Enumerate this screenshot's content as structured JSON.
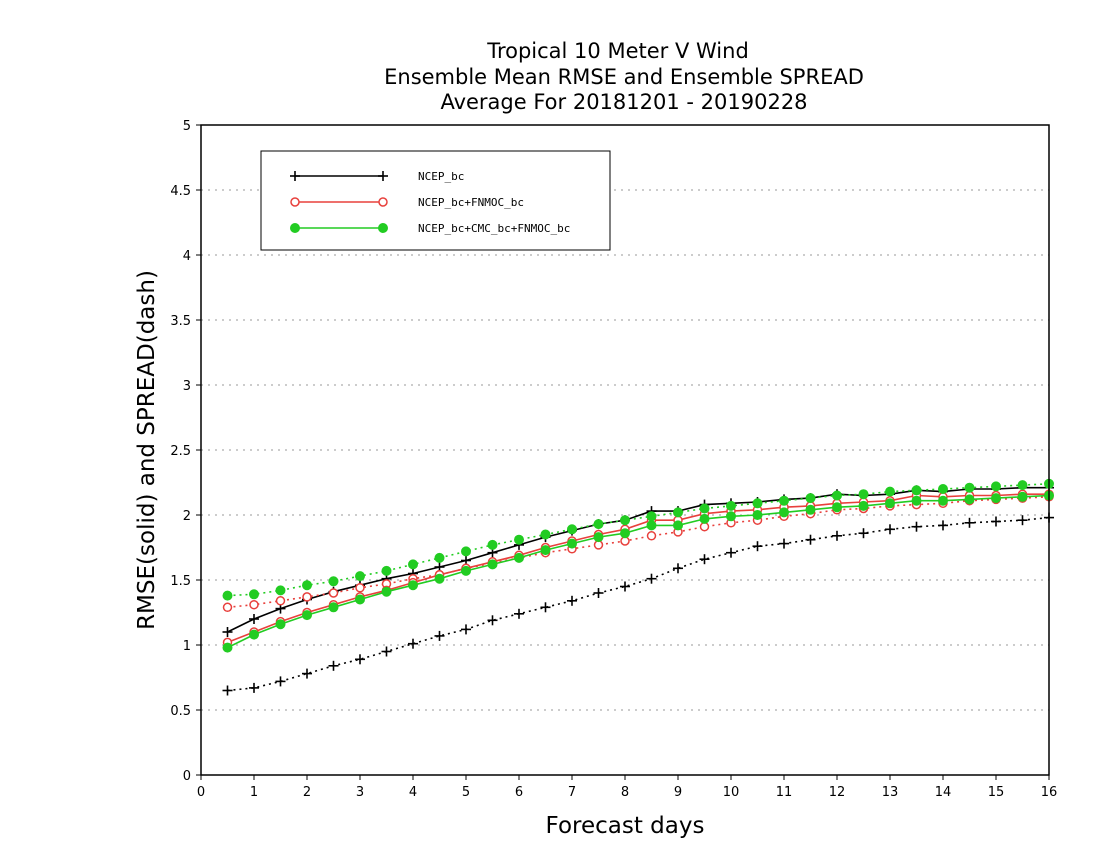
{
  "chart_data": {
    "type": "line",
    "title": [
      "Tropical 10 Meter V Wind",
      "Ensemble Mean RMSE and Ensemble SPREAD",
      "Average For 20181201 - 20190228"
    ],
    "xlabel": "Forecast days",
    "ylabel": "RMSE(solid) and SPREAD(dash)",
    "xlim": [
      0,
      16
    ],
    "ylim": [
      0,
      5
    ],
    "xticks": [
      0,
      1,
      2,
      3,
      4,
      5,
      6,
      7,
      8,
      9,
      10,
      11,
      12,
      13,
      14,
      15,
      16
    ],
    "xtick_labels": [
      "0",
      "1",
      "2",
      "3",
      "4",
      "5",
      "6",
      "7",
      "8",
      "9",
      "10",
      "11",
      "12",
      "13",
      "14",
      "15",
      "16"
    ],
    "yticks": [
      0,
      0.5,
      1,
      1.5,
      2,
      2.5,
      3,
      3.5,
      4,
      4.5,
      5
    ],
    "ytick_labels": [
      "0",
      "0.5",
      "1",
      "1.5",
      "2",
      "2.5",
      "3",
      "3.5",
      "4",
      "4.5",
      "5"
    ],
    "grid": "horizontal dotted",
    "legend_position": "top-left",
    "x": [
      0.5,
      1,
      1.5,
      2,
      2.5,
      3,
      3.5,
      4,
      4.5,
      5,
      5.5,
      6,
      6.5,
      7,
      7.5,
      8,
      8.5,
      9,
      9.5,
      10,
      10.5,
      11,
      11.5,
      12,
      12.5,
      13,
      13.5,
      14,
      14.5,
      15,
      15.5,
      16
    ],
    "series": [
      {
        "name": "NCEP_bc",
        "color": "#000000",
        "marker": "plus",
        "rmse": [
          1.1,
          1.2,
          1.28,
          1.35,
          1.41,
          1.46,
          1.51,
          1.55,
          1.6,
          1.65,
          1.71,
          1.77,
          1.83,
          1.88,
          1.93,
          1.96,
          2.03,
          2.03,
          2.08,
          2.09,
          2.1,
          2.12,
          2.13,
          2.16,
          2.15,
          2.16,
          2.19,
          2.18,
          2.2,
          2.2,
          2.21,
          2.21
        ],
        "spread": [
          0.65,
          0.67,
          0.72,
          0.78,
          0.84,
          0.89,
          0.95,
          1.01,
          1.07,
          1.12,
          1.19,
          1.24,
          1.29,
          1.34,
          1.4,
          1.45,
          1.51,
          1.59,
          1.66,
          1.71,
          1.76,
          1.78,
          1.81,
          1.84,
          1.86,
          1.89,
          1.91,
          1.92,
          1.94,
          1.95,
          1.96,
          1.98
        ]
      },
      {
        "name": "NCEP_bc+FNMOC_bc",
        "color": "#e8403c",
        "marker": "open-circle",
        "rmse": [
          1.02,
          1.1,
          1.18,
          1.25,
          1.31,
          1.37,
          1.42,
          1.48,
          1.54,
          1.59,
          1.64,
          1.69,
          1.75,
          1.8,
          1.85,
          1.89,
          1.96,
          1.96,
          2.01,
          2.03,
          2.04,
          2.06,
          2.07,
          2.09,
          2.1,
          2.11,
          2.15,
          2.14,
          2.15,
          2.15,
          2.16,
          2.16
        ],
        "spread": [
          1.29,
          1.31,
          1.34,
          1.37,
          1.4,
          1.44,
          1.47,
          1.51,
          1.54,
          1.59,
          1.63,
          1.67,
          1.71,
          1.74,
          1.77,
          1.8,
          1.84,
          1.87,
          1.91,
          1.94,
          1.96,
          1.99,
          2.01,
          2.04,
          2.05,
          2.07,
          2.08,
          2.09,
          2.11,
          2.12,
          2.13,
          2.14
        ]
      },
      {
        "name": "NCEP_bc+CMC_bc+FNMOC_bc",
        "color": "#22cc22",
        "marker": "filled-circle",
        "rmse": [
          0.98,
          1.08,
          1.16,
          1.23,
          1.29,
          1.35,
          1.41,
          1.46,
          1.51,
          1.57,
          1.62,
          1.67,
          1.73,
          1.78,
          1.83,
          1.86,
          1.92,
          1.92,
          1.97,
          1.99,
          2.0,
          2.02,
          2.04,
          2.06,
          2.07,
          2.09,
          2.11,
          2.11,
          2.12,
          2.13,
          2.14,
          2.15
        ],
        "spread": [
          1.38,
          1.39,
          1.42,
          1.46,
          1.49,
          1.53,
          1.57,
          1.62,
          1.67,
          1.72,
          1.77,
          1.81,
          1.85,
          1.89,
          1.93,
          1.96,
          1.99,
          2.02,
          2.05,
          2.07,
          2.09,
          2.11,
          2.13,
          2.15,
          2.16,
          2.18,
          2.19,
          2.2,
          2.21,
          2.22,
          2.23,
          2.24
        ]
      }
    ]
  }
}
